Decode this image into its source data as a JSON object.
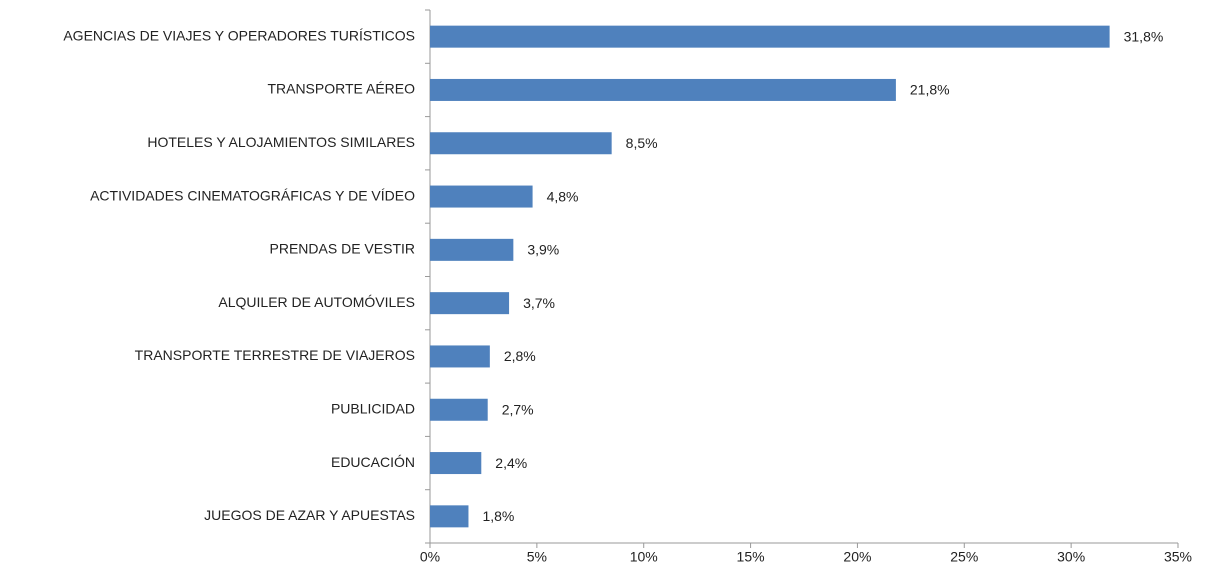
{
  "chart_data": {
    "type": "bar",
    "orientation": "horizontal",
    "categories": [
      "AGENCIAS DE VIAJES Y OPERADORES TURÍSTICOS",
      "TRANSPORTE AÉREO",
      "HOTELES  Y ALOJAMIENTOS SIMILARES",
      "ACTIVIDADES CINEMATOGRÁFICAS Y DE VÍDEO",
      "PRENDAS DE VESTIR",
      "ALQUILER DE AUTOMÓVILES",
      "TRANSPORTE TERRESTRE DE VIAJEROS",
      "PUBLICIDAD",
      "EDUCACIÓN",
      "JUEGOS DE AZAR Y APUESTAS"
    ],
    "values": [
      31.8,
      21.8,
      8.5,
      4.8,
      3.9,
      3.7,
      2.8,
      2.7,
      2.4,
      1.8
    ],
    "value_labels": [
      "31,8%",
      "21,8%",
      "8,5%",
      "4,8%",
      "3,9%",
      "3,7%",
      "2,8%",
      "2,7%",
      "2,4%",
      "1,8%"
    ],
    "color": "#4f81bd",
    "xlim": [
      0,
      35
    ],
    "xticks": [
      {
        "value": 0,
        "label": "0%"
      },
      {
        "value": 5,
        "label": "5%"
      },
      {
        "value": 10,
        "label": "10%"
      },
      {
        "value": 15,
        "label": "15%"
      },
      {
        "value": 20,
        "label": "20%"
      },
      {
        "value": 25,
        "label": "25%"
      },
      {
        "value": 30,
        "label": "30%"
      },
      {
        "value": 35,
        "label": "35%"
      }
    ],
    "grid": false
  }
}
